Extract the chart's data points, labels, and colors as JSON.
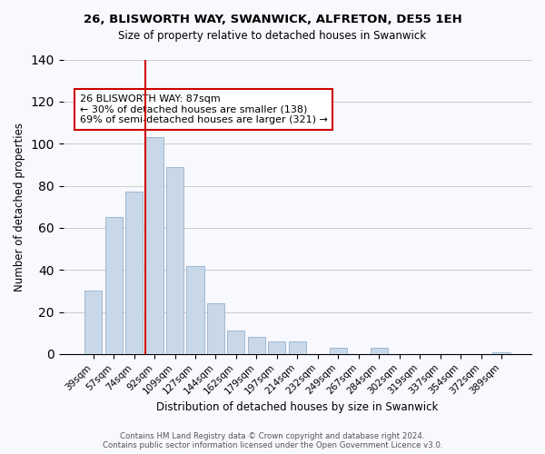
{
  "title": "26, BLISWORTH WAY, SWANWICK, ALFRETON, DE55 1EH",
  "subtitle": "Size of property relative to detached houses in Swanwick",
  "xlabel": "Distribution of detached houses by size in Swanwick",
  "ylabel": "Number of detached properties",
  "bar_labels": [
    "39sqm",
    "57sqm",
    "74sqm",
    "92sqm",
    "109sqm",
    "127sqm",
    "144sqm",
    "162sqm",
    "179sqm",
    "197sqm",
    "214sqm",
    "232sqm",
    "249sqm",
    "267sqm",
    "284sqm",
    "302sqm",
    "319sqm",
    "337sqm",
    "354sqm",
    "372sqm",
    "389sqm"
  ],
  "bar_values": [
    30,
    65,
    77,
    103,
    89,
    42,
    24,
    11,
    8,
    6,
    6,
    0,
    3,
    0,
    3,
    0,
    0,
    0,
    0,
    0,
    1
  ],
  "bar_color": "#c8d8e8",
  "bar_edge_color": "#a0b8d0",
  "vline_x_index": 3,
  "vline_color": "#cc0000",
  "ylim": [
    0,
    140
  ],
  "yticks": [
    0,
    20,
    40,
    60,
    80,
    100,
    120,
    140
  ],
  "annotation_title": "26 BLISWORTH WAY: 87sqm",
  "annotation_line1": "← 30% of detached houses are smaller (138)",
  "annotation_line2": "69% of semi-detached houses are larger (321) →",
  "annotation_box_color": "#ffffff",
  "annotation_border_color": "#cc0000",
  "footer_line1": "Contains HM Land Registry data © Crown copyright and database right 2024.",
  "footer_line2": "Contains public sector information licensed under the Open Government Licence v3.0.",
  "bg_color": "#f8f8ff",
  "grid_color": "#cccccc"
}
